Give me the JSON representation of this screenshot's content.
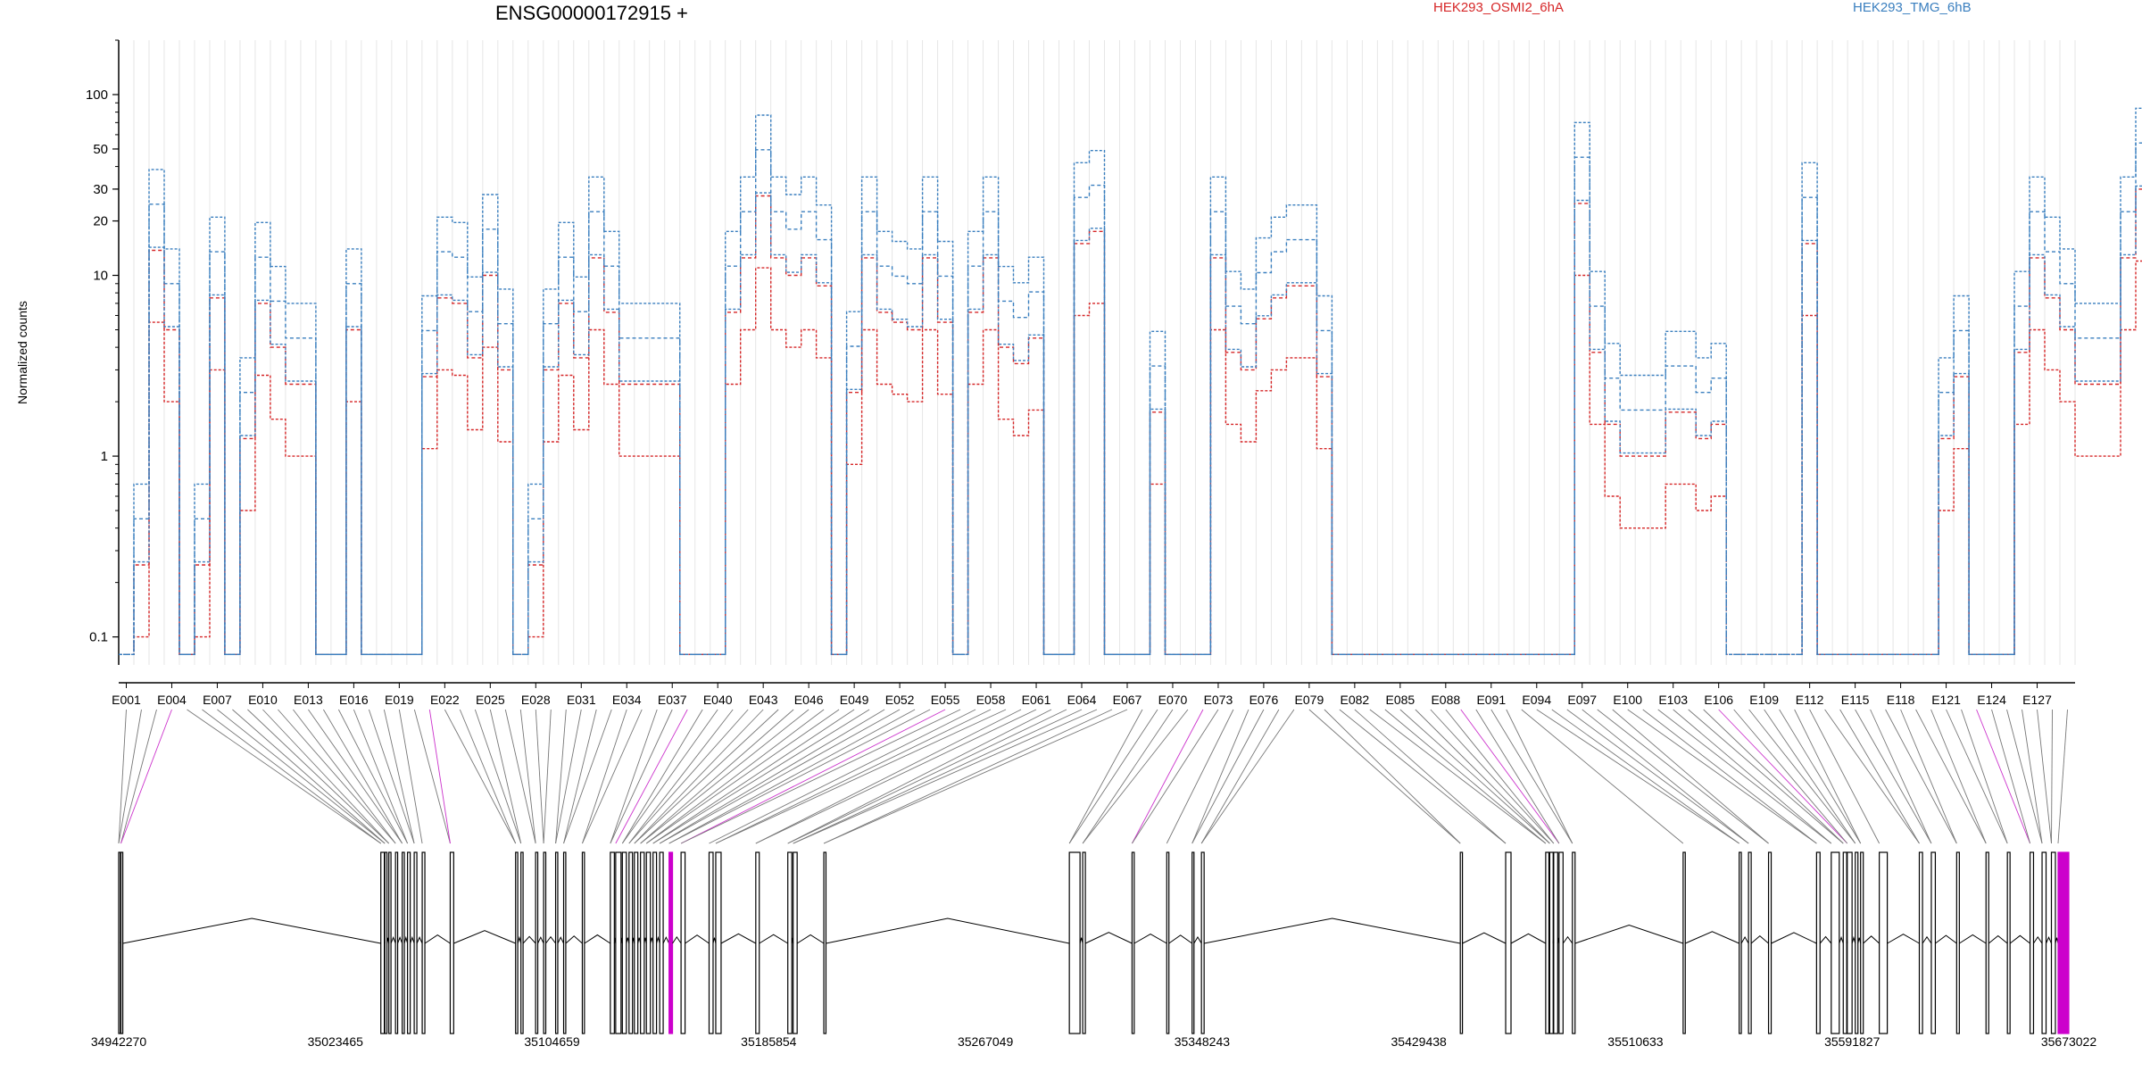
{
  "chart_data": {
    "type": "line",
    "title": "ENSG00000172915 +",
    "ylabel": "Normalized counts",
    "yscale": "log",
    "ylim": [
      0.07,
      200
    ],
    "yticks": [
      {
        "value": 100,
        "label": "100"
      },
      {
        "value": 50,
        "label": "50"
      },
      {
        "value": 30,
        "label": "30"
      },
      {
        "value": 20,
        "label": "20"
      },
      {
        "value": 10,
        "label": "10"
      },
      {
        "value": 1,
        "label": "1"
      },
      {
        "value": 0.1,
        "label": "0.1"
      }
    ],
    "exon_count": 129,
    "exon_tick_labels": [
      "E001",
      "E004",
      "E007",
      "E010",
      "E013",
      "E016",
      "E019",
      "E022",
      "E025",
      "E028",
      "E031",
      "E034",
      "E037",
      "E040",
      "E043",
      "E046",
      "E049",
      "E052",
      "E055",
      "E058",
      "E061",
      "E064",
      "E067",
      "E070",
      "E073",
      "E076",
      "E079",
      "E082",
      "E085",
      "E088",
      "E091",
      "E094",
      "E097",
      "E100",
      "E103",
      "E106",
      "E109",
      "E112",
      "E115",
      "E118",
      "E121",
      "E124",
      "E127"
    ],
    "legend": [
      {
        "name": "HEK293_OSMI2_6hA",
        "color": "#d62728"
      },
      {
        "name": "HEK293_TMG_6hB",
        "color": "#3a7fbf"
      }
    ],
    "series": [
      {
        "group": "HEK293_OSMI2_6hA",
        "color": "#d62728",
        "level": 1.0,
        "pattern": [
          0.08,
          0.1,
          5.5,
          2.0,
          0.08,
          0.1,
          3.0,
          0.08,
          0.5,
          2.8,
          1.6,
          1.0,
          1.0,
          0.08,
          0.08,
          2.0,
          0.08,
          0.08,
          0.08,
          0.08,
          1.1,
          3.0,
          2.8,
          1.4,
          4.0,
          1.2,
          0.08,
          0.1,
          1.2,
          2.8,
          1.4,
          5.0,
          2.5,
          1.0,
          1.0,
          1.0,
          1.0,
          0.08,
          0.08,
          0.08,
          2.5,
          5.0,
          11,
          5.0,
          4.0,
          5.0,
          3.5,
          0.08,
          0.9,
          5.0,
          2.5,
          2.2,
          2.0,
          5.0,
          2.2,
          0.08,
          2.5,
          5.0,
          1.6,
          1.3,
          1.8,
          0.08,
          0.08,
          6.0,
          7.0,
          0.08,
          0.08,
          0.08,
          0.7,
          0.08,
          0.08,
          0.08,
          5.0,
          1.5,
          1.2,
          2.3,
          3.0,
          3.5,
          3.5,
          1.1,
          0.08,
          0.08,
          0.08,
          0.08,
          0.08,
          0.08,
          0.08,
          0.08,
          0.08,
          0.08,
          0.08,
          0.08,
          0.08,
          0.08,
          0.08,
          0.08,
          10,
          1.5,
          0.6,
          0.4,
          0.4,
          0.4,
          0.7,
          0.7,
          0.5,
          0.6,
          0.08,
          0.08,
          0.08,
          0.08,
          0.08,
          6.0,
          0.08,
          0.08,
          0.08,
          0.08,
          0.08,
          0.08,
          0.08,
          0.08,
          0.5,
          1.1,
          0.08,
          0.08,
          0.08,
          1.5,
          5.0,
          3.0,
          2.0,
          1.0,
          1.0,
          1.0,
          5.0,
          12,
          45,
          0.08
        ]
      },
      {
        "group": "HEK293_OSMI2_6hA",
        "color": "#d62728",
        "level": 2.5,
        "pattern": [
          0.08,
          0.1,
          5.5,
          2.0,
          0.08,
          0.1,
          3.0,
          0.08,
          0.5,
          2.8,
          1.6,
          1.0,
          1.0,
          0.08,
          0.08,
          2.0,
          0.08,
          0.08,
          0.08,
          0.08,
          1.1,
          3.0,
          2.8,
          1.4,
          4.0,
          1.2,
          0.08,
          0.1,
          1.2,
          2.8,
          1.4,
          5.0,
          2.5,
          1.0,
          1.0,
          1.0,
          1.0,
          0.08,
          0.08,
          0.08,
          2.5,
          5.0,
          11,
          5.0,
          4.0,
          5.0,
          3.5,
          0.08,
          0.9,
          5.0,
          2.5,
          2.2,
          2.0,
          5.0,
          2.2,
          0.08,
          2.5,
          5.0,
          1.6,
          1.3,
          1.8,
          0.08,
          0.08,
          6.0,
          7.0,
          0.08,
          0.08,
          0.08,
          0.7,
          0.08,
          0.08,
          0.08,
          5.0,
          1.5,
          1.2,
          2.3,
          3.0,
          3.5,
          3.5,
          1.1,
          0.08,
          0.08,
          0.08,
          0.08,
          0.08,
          0.08,
          0.08,
          0.08,
          0.08,
          0.08,
          0.08,
          0.08,
          0.08,
          0.08,
          0.08,
          0.08,
          10,
          1.5,
          0.6,
          0.4,
          0.4,
          0.4,
          0.7,
          0.7,
          0.5,
          0.6,
          0.08,
          0.08,
          0.08,
          0.08,
          0.08,
          6.0,
          0.08,
          0.08,
          0.08,
          0.08,
          0.08,
          0.08,
          0.08,
          0.08,
          0.5,
          1.1,
          0.08,
          0.08,
          0.08,
          1.5,
          5.0,
          3.0,
          2.0,
          1.0,
          1.0,
          1.0,
          5.0,
          12,
          45,
          0.08
        ]
      },
      {
        "group": "HEK293_TMG_6hB",
        "color": "#3a7fbf",
        "level": 2.6,
        "pattern": [
          0.08,
          0.1,
          5.5,
          2.0,
          0.08,
          0.1,
          3.0,
          0.08,
          0.5,
          2.8,
          1.6,
          1.0,
          1.0,
          0.08,
          0.08,
          2.0,
          0.08,
          0.08,
          0.08,
          0.08,
          1.1,
          3.0,
          2.8,
          1.4,
          4.0,
          1.2,
          0.08,
          0.1,
          1.2,
          2.8,
          1.4,
          5.0,
          2.5,
          1.0,
          1.0,
          1.0,
          1.0,
          0.08,
          0.08,
          0.08,
          2.5,
          5.0,
          11,
          5.0,
          4.0,
          5.0,
          3.5,
          0.08,
          0.9,
          5.0,
          2.5,
          2.2,
          2.0,
          5.0,
          2.2,
          0.08,
          2.5,
          5.0,
          1.6,
          1.3,
          1.8,
          0.08,
          0.08,
          6.0,
          7.0,
          0.08,
          0.08,
          0.08,
          0.7,
          0.08,
          0.08,
          0.08,
          5.0,
          1.5,
          1.2,
          2.3,
          3.0,
          3.5,
          3.5,
          1.1,
          0.08,
          0.08,
          0.08,
          0.08,
          0.08,
          0.08,
          0.08,
          0.08,
          0.08,
          0.08,
          0.08,
          0.08,
          0.08,
          0.08,
          0.08,
          0.08,
          10,
          1.5,
          0.6,
          0.4,
          0.4,
          0.4,
          0.7,
          0.7,
          0.5,
          0.6,
          0.08,
          0.08,
          0.08,
          0.08,
          0.08,
          6.0,
          0.08,
          0.08,
          0.08,
          0.08,
          0.08,
          0.08,
          0.08,
          0.08,
          0.5,
          1.1,
          0.08,
          0.08,
          0.08,
          1.5,
          5.0,
          3.0,
          2.0,
          1.0,
          1.0,
          1.0,
          5.0,
          12,
          45,
          0.08
        ]
      },
      {
        "group": "HEK293_TMG_6hB",
        "color": "#3a7fbf",
        "level": 4.5,
        "pattern": [
          0.08,
          0.1,
          5.5,
          2.0,
          0.08,
          0.1,
          3.0,
          0.08,
          0.5,
          2.8,
          1.6,
          1.0,
          1.0,
          0.08,
          0.08,
          2.0,
          0.08,
          0.08,
          0.08,
          0.08,
          1.1,
          3.0,
          2.8,
          1.4,
          4.0,
          1.2,
          0.08,
          0.1,
          1.2,
          2.8,
          1.4,
          5.0,
          2.5,
          1.0,
          1.0,
          1.0,
          1.0,
          0.08,
          0.08,
          0.08,
          2.5,
          5.0,
          11,
          5.0,
          4.0,
          5.0,
          3.5,
          0.08,
          0.9,
          5.0,
          2.5,
          2.2,
          2.0,
          5.0,
          2.2,
          0.08,
          2.5,
          5.0,
          1.6,
          1.3,
          1.8,
          0.08,
          0.08,
          6.0,
          7.0,
          0.08,
          0.08,
          0.08,
          0.7,
          0.08,
          0.08,
          0.08,
          5.0,
          1.5,
          1.2,
          2.3,
          3.0,
          3.5,
          3.5,
          1.1,
          0.08,
          0.08,
          0.08,
          0.08,
          0.08,
          0.08,
          0.08,
          0.08,
          0.08,
          0.08,
          0.08,
          0.08,
          0.08,
          0.08,
          0.08,
          0.08,
          10,
          1.5,
          0.6,
          0.4,
          0.4,
          0.4,
          0.7,
          0.7,
          0.5,
          0.6,
          0.08,
          0.08,
          0.08,
          0.08,
          0.08,
          6.0,
          0.08,
          0.08,
          0.08,
          0.08,
          0.08,
          0.08,
          0.08,
          0.08,
          0.5,
          1.1,
          0.08,
          0.08,
          0.08,
          1.5,
          5.0,
          3.0,
          2.0,
          1.0,
          1.0,
          1.0,
          5.0,
          12,
          45,
          0.08
        ]
      },
      {
        "group": "HEK293_TMG_6hB",
        "color": "#3a7fbf",
        "level": 7.0,
        "pattern": [
          0.08,
          0.1,
          5.5,
          2.0,
          0.08,
          0.1,
          3.0,
          0.08,
          0.5,
          2.8,
          1.6,
          1.0,
          1.0,
          0.08,
          0.08,
          2.0,
          0.08,
          0.08,
          0.08,
          0.08,
          1.1,
          3.0,
          2.8,
          1.4,
          4.0,
          1.2,
          0.08,
          0.1,
          1.2,
          2.8,
          1.4,
          5.0,
          2.5,
          1.0,
          1.0,
          1.0,
          1.0,
          0.08,
          0.08,
          0.08,
          2.5,
          5.0,
          11,
          5.0,
          4.0,
          5.0,
          3.5,
          0.08,
          0.9,
          5.0,
          2.5,
          2.2,
          2.0,
          5.0,
          2.2,
          0.08,
          2.5,
          5.0,
          1.6,
          1.3,
          1.8,
          0.08,
          0.08,
          6.0,
          7.0,
          0.08,
          0.08,
          0.08,
          0.7,
          0.08,
          0.08,
          0.08,
          5.0,
          1.5,
          1.2,
          2.3,
          3.0,
          3.5,
          3.5,
          1.1,
          0.08,
          0.08,
          0.08,
          0.08,
          0.08,
          0.08,
          0.08,
          0.08,
          0.08,
          0.08,
          0.08,
          0.08,
          0.08,
          0.08,
          0.08,
          0.08,
          10,
          1.5,
          0.6,
          0.4,
          0.4,
          0.4,
          0.7,
          0.7,
          0.5,
          0.6,
          0.08,
          0.08,
          0.08,
          0.08,
          0.08,
          6.0,
          0.08,
          0.08,
          0.08,
          0.08,
          0.08,
          0.08,
          0.08,
          0.08,
          0.5,
          1.1,
          0.08,
          0.08,
          0.08,
          1.5,
          5.0,
          3.0,
          2.0,
          1.0,
          1.0,
          1.0,
          5.0,
          12,
          45,
          0.08
        ]
      }
    ],
    "genomic_axis": {
      "min": 34942270,
      "max": 35673022,
      "tick_labels": [
        "34942270",
        "35023465",
        "35104659",
        "35185854",
        "35267049",
        "35348243",
        "35429438",
        "35510633",
        "35591827",
        "35673022"
      ]
    },
    "gene_model": {
      "exon_starts": [
        34942270,
        34943100,
        35040500,
        35042000,
        35043500,
        35046000,
        35048500,
        35050500,
        35053000,
        35056000,
        35066500,
        35091000,
        35093000,
        35098500,
        35101500,
        35106000,
        35109000,
        35116000,
        35126500,
        35128500,
        35131000,
        35133500,
        35135500,
        35137800,
        35140000,
        35142500,
        35145000,
        35148500,
        35153000,
        35163500,
        35166000,
        35181000,
        35193000,
        35195000,
        35206500,
        35298500,
        35303500,
        35322000,
        35335000,
        35344500,
        35348000,
        35445000,
        35462000,
        35477000,
        35478500,
        35480000,
        35482000,
        35487000,
        35528500,
        35549500,
        35553000,
        35560500,
        35578500,
        35584000,
        35588500,
        35590000,
        35593000,
        35595000,
        35602000,
        35617000,
        35621500,
        35631000,
        35642000,
        35650000,
        35658500,
        35663000,
        35666500,
        35669000
      ],
      "exon_ends": [
        34942900,
        34943800,
        35041800,
        35042800,
        35044300,
        35046800,
        35049300,
        35051500,
        35054000,
        35057000,
        35067800,
        35091800,
        35093800,
        35099300,
        35102300,
        35106800,
        35109800,
        35116800,
        35128000,
        35130500,
        35132500,
        35134800,
        35136800,
        35139200,
        35141500,
        35143800,
        35146300,
        35149800,
        35154500,
        35165000,
        35168000,
        35182300,
        35194500,
        35196500,
        35207300,
        35302500,
        35304500,
        35322800,
        35335800,
        35345200,
        35349000,
        35445800,
        35464000,
        35478200,
        35479800,
        35481500,
        35483500,
        35488000,
        35529300,
        35550300,
        35554000,
        35561500,
        35579800,
        35587000,
        35589800,
        35591800,
        35594000,
        35596000,
        35605000,
        35618200,
        35623000,
        35632000,
        35643000,
        35651000,
        35659800,
        35664500,
        35668000,
        35673022
      ],
      "highlight_color": "#cc00cc"
    }
  }
}
